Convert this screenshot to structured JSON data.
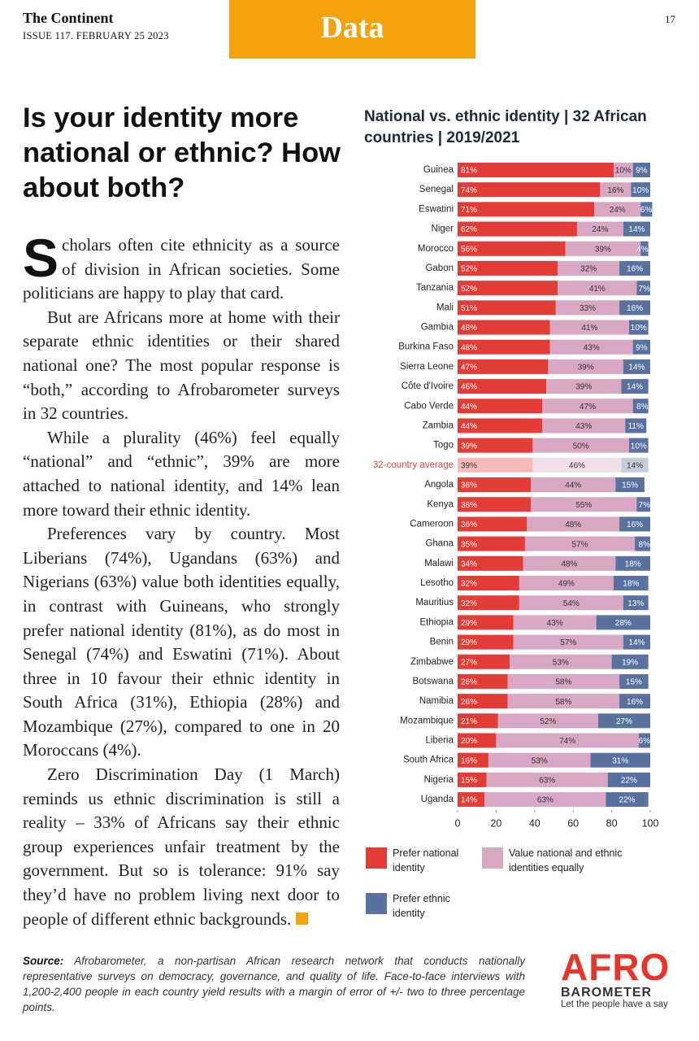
{
  "header": {
    "publication": "The Continent",
    "issue": "ISSUE 117. FEBRUARY 25 2023",
    "section": "Data",
    "page": "17"
  },
  "article": {
    "headline": "Is your identity more national or ethnic? How about both?",
    "dropcap": "S",
    "paragraphs": [
      "cholars often cite ethnicity as a source of division in African societies. Some politicians are happy to play that card.",
      "But are Africans more at home with their separate ethnic identities or their shared national one? The most popular response is “both,” according to Afrobarometer surveys in 32 countries.",
      "While a plurality (46%) feel equally “national” and “ethnic”, 39% are more attached to national identity, and 14% lean more toward their ethnic identity.",
      "Preferences vary by country. Most Liberians (74%), Ugandans (63%) and Nigerians (63%) value both identities equally, in contrast with Guineans, who strongly prefer national identity (81%), as do most in Senegal (74%) and Eswatini (71%). About three in 10 favour their ethnic identity in South Africa (31%), Ethiopia (28%) and Mozambique (27%), compared to one in 20 Moroccans (4%).",
      "Zero Discrimination Day (1 March) reminds us ethnic discrimination is still a reality – 33% of Africans say their ethnic group experiences unfair treatment by the government. But so is tolerance: 91% say they’d have no problem living next door to people of different ethnic backgrounds."
    ]
  },
  "chart_data": {
    "type": "bar",
    "orientation": "horizontal",
    "stacked": true,
    "title": "National vs. ethnic identity | 32 African countries | 2019/2021",
    "categories": [
      "Guinea",
      "Senegal",
      "Eswatini",
      "Niger",
      "Morocco",
      "Gabon",
      "Tanzania",
      "Mali",
      "Gambia",
      "Burkina Faso",
      "Sierra Leone",
      "Côte d'Ivoire",
      "Cabo Verde",
      "Zambia",
      "Togo",
      "32-country average",
      "Angola",
      "Kenya",
      "Cameroon",
      "Ghana",
      "Malawi",
      "Lesotho",
      "Mauritius",
      "Ethiopia",
      "Benin",
      "Zimbabwe",
      "Botswana",
      "Namibia",
      "Mozambique",
      "Liberia",
      "South Africa",
      "Nigeria",
      "Uganda"
    ],
    "highlight_index": 15,
    "series": [
      {
        "name": "Prefer national identity",
        "color": "#e33b36",
        "values": [
          81,
          74,
          71,
          62,
          56,
          52,
          52,
          51,
          48,
          48,
          47,
          46,
          44,
          44,
          39,
          39,
          38,
          38,
          36,
          35,
          34,
          32,
          32,
          29,
          29,
          27,
          26,
          26,
          21,
          20,
          16,
          15,
          14
        ],
        "value_labels": [
          "81%",
          "74%",
          "71%",
          "62%",
          "56%",
          "52%",
          "52%",
          "51%",
          "48%",
          "48%",
          "47%",
          "46%",
          "44%",
          "44%",
          "39%",
          "39%",
          "38%",
          "38%",
          "36%",
          "35%",
          "34%",
          "32%",
          "32%",
          "29%",
          "29%",
          "27%",
          "26%",
          "26%",
          "21%",
          "20%",
          "16%",
          "15%",
          "14%"
        ]
      },
      {
        "name": "Value national and ethnic identities equally",
        "color": "#d8a7c4",
        "values": [
          10,
          16,
          24,
          24,
          39,
          32,
          41,
          33,
          41,
          43,
          39,
          39,
          47,
          43,
          50,
          46,
          44,
          55,
          48,
          57,
          48,
          49,
          54,
          43,
          57,
          53,
          58,
          58,
          52,
          74,
          53,
          63,
          63
        ],
        "value_labels": [
          "10%",
          "16%",
          "24%",
          "24%",
          "39%",
          "32%",
          "41%",
          "33%",
          "41%",
          "43%",
          "39%",
          "39%",
          "47%",
          "43%",
          "50%",
          "46%",
          "44%",
          "55%",
          "48%",
          "57%",
          "48%",
          "49%",
          "54%",
          "43%",
          "57%",
          "53%",
          "58%",
          "58%",
          "52%",
          "74%",
          "53%",
          "63%",
          "63%"
        ]
      },
      {
        "name": "Prefer ethnic identity",
        "color": "#58719f",
        "values": [
          9,
          10,
          6,
          14,
          4,
          16,
          7,
          16,
          10,
          9,
          14,
          14,
          8,
          11,
          10,
          14,
          15,
          7,
          16,
          8,
          18,
          18,
          13,
          28,
          14,
          19,
          15,
          16,
          27,
          6,
          31,
          22,
          22
        ],
        "value_labels": [
          "9%",
          "10%",
          "6%",
          "14%",
          "4%",
          "16%",
          "7%",
          "16%",
          "10%",
          "9%",
          "14%",
          "14%",
          "8%",
          "11%",
          "10%",
          "14%",
          "15%",
          "7%",
          "16%",
          "8%",
          "18%",
          "18%",
          "13%",
          "28%",
          "14%",
          "19%",
          "15%",
          "16%",
          "27%",
          "6%",
          "31%",
          "22%",
          "22%"
        ]
      }
    ],
    "xlim": [
      0,
      100
    ],
    "xticks": [
      0,
      20,
      40,
      60,
      80,
      100
    ]
  },
  "source": {
    "label": "Source:",
    "text": "Afrobarometer, a non-partisan African research network that conducts nationally representative surveys on democracy, governance, and quality of life. Face-to-face interviews with 1,200-2,400 people in each country yield results with a margin of error of +/- two to three percentage points."
  },
  "logo": {
    "name": "AFRO",
    "subname": "BAROMETER",
    "tagline": "Let the people have a say"
  }
}
